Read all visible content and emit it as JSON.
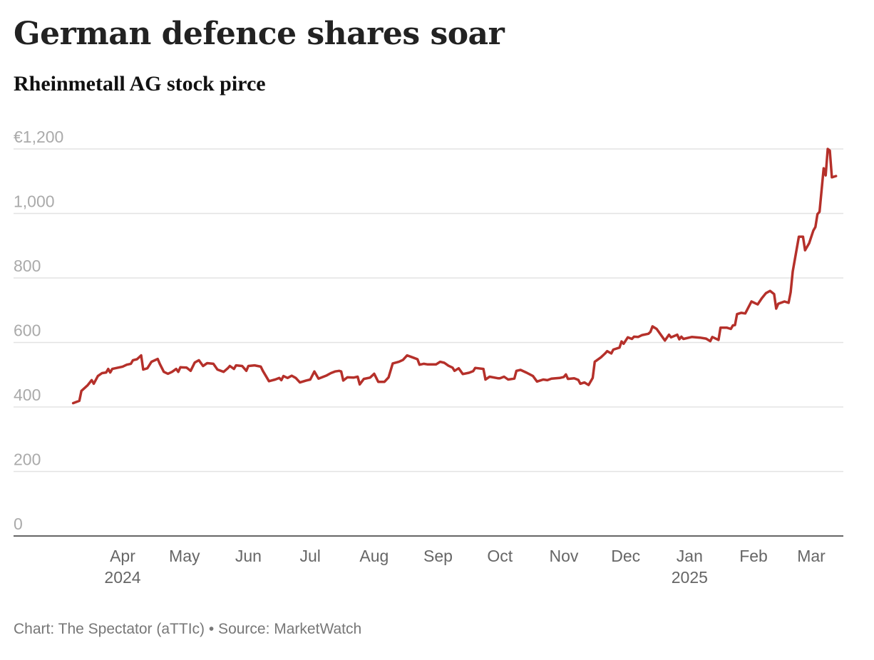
{
  "header": {
    "title": "German defence shares soar",
    "subtitle": "Rheinmetall AG stock pirce"
  },
  "footer": {
    "credit": "Chart: The Spectator (aTTIc) • Source: MarketWatch"
  },
  "colors": {
    "line": "#b5302a",
    "gridline": "#e3e3e3",
    "axis": "#333333",
    "ytick_text": "#aaaaaa",
    "xtick_text": "#666666"
  },
  "chart_data": {
    "type": "line",
    "title": "German defence shares soar",
    "subtitle": "Rheinmetall AG stock pirce",
    "xlabel": "",
    "ylabel": "",
    "ylim": [
      0,
      1200
    ],
    "xlim": [
      "2024-03-01",
      "2025-03-14"
    ],
    "grid": true,
    "legend": "none",
    "y_ticks": [
      {
        "value": 1200,
        "label": "€1,200"
      },
      {
        "value": 1000,
        "label": "1,000"
      },
      {
        "value": 800,
        "label": "800"
      },
      {
        "value": 600,
        "label": "600"
      },
      {
        "value": 400,
        "label": "400"
      },
      {
        "value": 200,
        "label": "200"
      },
      {
        "value": 0,
        "label": "0"
      }
    ],
    "x_ticks": [
      {
        "date": "2024-04-01",
        "label": "Apr",
        "year": "2024"
      },
      {
        "date": "2024-05-01",
        "label": "May",
        "year": ""
      },
      {
        "date": "2024-06-01",
        "label": "Jun",
        "year": ""
      },
      {
        "date": "2024-07-01",
        "label": "Jul",
        "year": ""
      },
      {
        "date": "2024-08-01",
        "label": "Aug",
        "year": ""
      },
      {
        "date": "2024-09-01",
        "label": "Sep",
        "year": ""
      },
      {
        "date": "2024-10-01",
        "label": "Oct",
        "year": ""
      },
      {
        "date": "2024-11-01",
        "label": "Nov",
        "year": ""
      },
      {
        "date": "2024-12-01",
        "label": "Dec",
        "year": ""
      },
      {
        "date": "2025-01-01",
        "label": "Jan",
        "year": "2025"
      },
      {
        "date": "2025-02-01",
        "label": "Feb",
        "year": ""
      },
      {
        "date": "2025-03-01",
        "label": "Mar",
        "year": ""
      }
    ],
    "series": [
      {
        "name": "Rheinmetall AG",
        "points": [
          [
            "2024-03-08",
            412
          ],
          [
            "2024-03-11",
            419
          ],
          [
            "2024-03-12",
            450
          ],
          [
            "2024-03-15",
            467
          ],
          [
            "2024-03-17",
            483
          ],
          [
            "2024-03-18",
            472
          ],
          [
            "2024-03-20",
            496
          ],
          [
            "2024-03-22",
            505
          ],
          [
            "2024-03-24",
            507
          ],
          [
            "2024-03-25",
            518
          ],
          [
            "2024-03-26",
            507
          ],
          [
            "2024-03-27",
            518
          ],
          [
            "2024-04-01",
            525
          ],
          [
            "2024-04-03",
            531
          ],
          [
            "2024-04-05",
            534
          ],
          [
            "2024-04-06",
            545
          ],
          [
            "2024-04-08",
            548
          ],
          [
            "2024-04-10",
            560
          ],
          [
            "2024-04-11",
            516
          ],
          [
            "2024-04-13",
            520
          ],
          [
            "2024-04-15",
            540
          ],
          [
            "2024-04-18",
            549
          ],
          [
            "2024-04-19",
            534
          ],
          [
            "2024-04-21",
            509
          ],
          [
            "2024-04-23",
            503
          ],
          [
            "2024-04-25",
            509
          ],
          [
            "2024-04-27",
            518
          ],
          [
            "2024-04-28",
            509
          ],
          [
            "2024-04-29",
            523
          ],
          [
            "2024-05-02",
            522
          ],
          [
            "2024-05-04",
            512
          ],
          [
            "2024-05-06",
            538
          ],
          [
            "2024-05-08",
            545
          ],
          [
            "2024-05-10",
            527
          ],
          [
            "2024-05-12",
            536
          ],
          [
            "2024-05-15",
            534
          ],
          [
            "2024-05-17",
            516
          ],
          [
            "2024-05-20",
            509
          ],
          [
            "2024-05-22",
            520
          ],
          [
            "2024-05-23",
            527
          ],
          [
            "2024-05-25",
            518
          ],
          [
            "2024-05-26",
            529
          ],
          [
            "2024-05-29",
            527
          ],
          [
            "2024-05-31",
            512
          ],
          [
            "2024-06-01",
            527
          ],
          [
            "2024-06-04",
            529
          ],
          [
            "2024-06-07",
            525
          ],
          [
            "2024-06-08",
            512
          ],
          [
            "2024-06-11",
            480
          ],
          [
            "2024-06-14",
            485
          ],
          [
            "2024-06-16",
            490
          ],
          [
            "2024-06-17",
            483
          ],
          [
            "2024-06-18",
            496
          ],
          [
            "2024-06-20",
            490
          ],
          [
            "2024-06-22",
            497
          ],
          [
            "2024-06-24",
            490
          ],
          [
            "2024-06-26",
            476
          ],
          [
            "2024-06-29",
            482
          ],
          [
            "2024-07-01",
            485
          ],
          [
            "2024-07-03",
            510
          ],
          [
            "2024-07-05",
            488
          ],
          [
            "2024-07-09",
            498
          ],
          [
            "2024-07-11",
            505
          ],
          [
            "2024-07-13",
            510
          ],
          [
            "2024-07-15",
            512
          ],
          [
            "2024-07-16",
            510
          ],
          [
            "2024-07-17",
            482
          ],
          [
            "2024-07-19",
            492
          ],
          [
            "2024-07-22",
            491
          ],
          [
            "2024-07-24",
            494
          ],
          [
            "2024-07-25",
            470
          ],
          [
            "2024-07-27",
            487
          ],
          [
            "2024-07-30",
            491
          ],
          [
            "2024-08-01",
            503
          ],
          [
            "2024-08-03",
            478
          ],
          [
            "2024-08-06",
            478
          ],
          [
            "2024-08-08",
            492
          ],
          [
            "2024-08-10",
            535
          ],
          [
            "2024-08-13",
            540
          ],
          [
            "2024-08-15",
            546
          ],
          [
            "2024-08-17",
            560
          ],
          [
            "2024-08-20",
            553
          ],
          [
            "2024-08-22",
            548
          ],
          [
            "2024-08-23",
            531
          ],
          [
            "2024-08-25",
            534
          ],
          [
            "2024-08-27",
            532
          ],
          [
            "2024-08-31",
            532
          ],
          [
            "2024-09-02",
            540
          ],
          [
            "2024-09-04",
            537
          ],
          [
            "2024-09-06",
            528
          ],
          [
            "2024-09-08",
            522
          ],
          [
            "2024-09-09",
            512
          ],
          [
            "2024-09-11",
            520
          ],
          [
            "2024-09-13",
            502
          ],
          [
            "2024-09-16",
            506
          ],
          [
            "2024-09-18",
            511
          ],
          [
            "2024-09-19",
            521
          ],
          [
            "2024-09-23",
            518
          ],
          [
            "2024-09-24",
            485
          ],
          [
            "2024-09-26",
            494
          ],
          [
            "2024-09-30",
            489
          ],
          [
            "2024-10-01",
            489
          ],
          [
            "2024-10-03",
            494
          ],
          [
            "2024-10-05",
            485
          ],
          [
            "2024-10-08",
            488
          ],
          [
            "2024-10-09",
            512
          ],
          [
            "2024-10-11",
            515
          ],
          [
            "2024-10-14",
            506
          ],
          [
            "2024-10-17",
            496
          ],
          [
            "2024-10-19",
            479
          ],
          [
            "2024-10-22",
            485
          ],
          [
            "2024-10-24",
            483
          ],
          [
            "2024-10-26",
            488
          ],
          [
            "2024-10-30",
            490
          ],
          [
            "2024-11-01",
            493
          ],
          [
            "2024-11-02",
            501
          ],
          [
            "2024-11-03",
            487
          ],
          [
            "2024-11-06",
            489
          ],
          [
            "2024-11-08",
            484
          ],
          [
            "2024-11-09",
            472
          ],
          [
            "2024-11-11",
            476
          ],
          [
            "2024-11-13",
            468
          ],
          [
            "2024-11-15",
            490
          ],
          [
            "2024-11-16",
            540
          ],
          [
            "2024-11-19",
            554
          ],
          [
            "2024-11-21",
            566
          ],
          [
            "2024-11-22",
            573
          ],
          [
            "2024-11-24",
            566
          ],
          [
            "2024-11-25",
            578
          ],
          [
            "2024-11-28",
            584
          ],
          [
            "2024-11-29",
            603
          ],
          [
            "2024-11-30",
            596
          ],
          [
            "2024-12-02",
            616
          ],
          [
            "2024-12-04",
            611
          ],
          [
            "2024-12-05",
            618
          ],
          [
            "2024-12-07",
            617
          ],
          [
            "2024-12-09",
            623
          ],
          [
            "2024-12-12",
            627
          ],
          [
            "2024-12-13",
            633
          ],
          [
            "2024-12-14",
            650
          ],
          [
            "2024-12-16",
            642
          ],
          [
            "2024-12-19",
            615
          ],
          [
            "2024-12-20",
            606
          ],
          [
            "2024-12-22",
            624
          ],
          [
            "2024-12-23",
            616
          ],
          [
            "2024-12-26",
            624
          ],
          [
            "2024-12-27",
            610
          ],
          [
            "2024-12-28",
            618
          ],
          [
            "2024-12-29",
            611
          ],
          [
            "2025-01-02",
            617
          ],
          [
            "2025-01-06",
            615
          ],
          [
            "2025-01-09",
            612
          ],
          [
            "2025-01-11",
            604
          ],
          [
            "2025-01-12",
            617
          ],
          [
            "2025-01-15",
            608
          ],
          [
            "2025-01-16",
            646
          ],
          [
            "2025-01-19",
            646
          ],
          [
            "2025-01-21",
            642
          ],
          [
            "2025-01-22",
            653
          ],
          [
            "2025-01-23",
            654
          ],
          [
            "2025-01-24",
            688
          ],
          [
            "2025-01-26",
            692
          ],
          [
            "2025-01-28",
            690
          ],
          [
            "2025-01-31",
            727
          ],
          [
            "2025-02-03",
            718
          ],
          [
            "2025-02-05",
            737
          ],
          [
            "2025-02-07",
            753
          ],
          [
            "2025-02-09",
            760
          ],
          [
            "2025-02-11",
            750
          ],
          [
            "2025-02-12",
            705
          ],
          [
            "2025-02-13",
            720
          ],
          [
            "2025-02-16",
            727
          ],
          [
            "2025-02-18",
            723
          ],
          [
            "2025-02-19",
            756
          ],
          [
            "2025-02-20",
            820
          ],
          [
            "2025-02-23",
            928
          ],
          [
            "2025-02-25",
            928
          ],
          [
            "2025-02-26",
            886
          ],
          [
            "2025-02-28",
            908
          ],
          [
            "2025-03-02",
            947
          ],
          [
            "2025-03-03",
            958
          ],
          [
            "2025-03-04",
            998
          ],
          [
            "2025-03-05",
            1005
          ],
          [
            "2025-03-07",
            1140
          ],
          [
            "2025-03-08",
            1118
          ],
          [
            "2025-03-09",
            1200
          ],
          [
            "2025-03-10",
            1195
          ],
          [
            "2025-03-11",
            1112
          ],
          [
            "2025-03-13",
            1116
          ]
        ]
      }
    ]
  }
}
